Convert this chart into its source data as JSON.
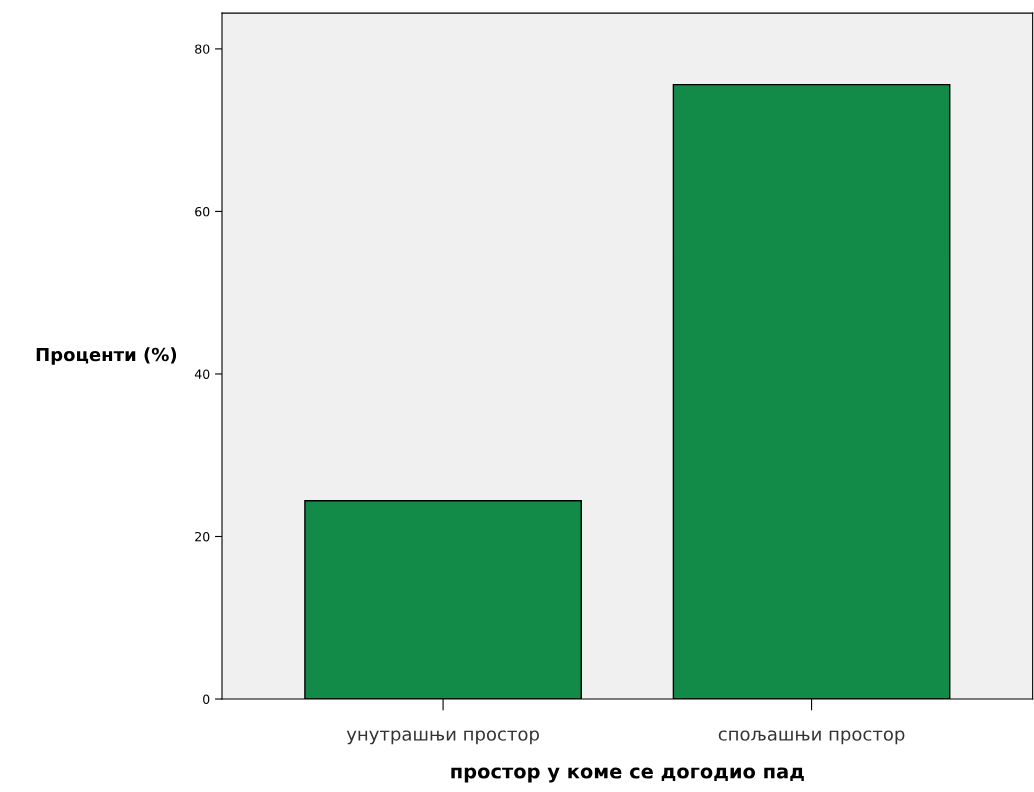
{
  "chart_data": {
    "type": "bar",
    "xlabel": "простор у коме се догодио пад",
    "ylabel": "Проценти (%)",
    "categories": [
      "унутрашњи простор",
      "спољашњи простор"
    ],
    "values": [
      24.4,
      75.6
    ],
    "color": "#138b48",
    "ylim": [
      0,
      84.4
    ],
    "yticks": [
      0,
      20,
      40,
      60,
      80
    ],
    "grid": false
  }
}
